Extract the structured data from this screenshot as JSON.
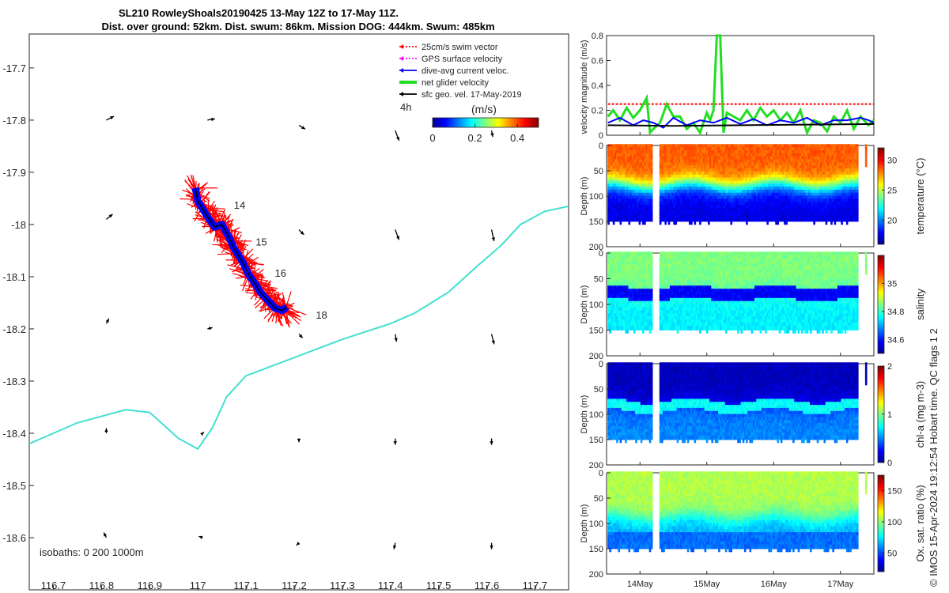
{
  "title": {
    "line1": "SL210 RowleyShoals20190425 13-May 12Z to 17-May 11Z.",
    "line2": "Dist. over ground: 52km. Dist. swum: 86km. Mission DOG: 444km. Swum: 485km"
  },
  "credit": "© IMOS 15-Apr-2024 19:12:54 Hobart time. QC flags 1  2",
  "map": {
    "xlim": [
      116.65,
      117.77
    ],
    "ylim": [
      -18.7,
      -17.635
    ],
    "xticks": [
      116.7,
      116.8,
      116.9,
      117,
      117.1,
      117.2,
      117.3,
      117.4,
      117.5,
      117.6,
      117.7
    ],
    "xtick_labels": [
      "116.7",
      "116.8",
      "116.9",
      "117",
      "117.1",
      "117.2",
      "117.3",
      "117.4",
      "117.5",
      "117.6",
      "117.7"
    ],
    "yticks": [
      -17.7,
      -17.8,
      -17.9,
      -18,
      -18.1,
      -18.2,
      -18.3,
      -18.4,
      -18.5,
      -18.6
    ],
    "ytick_labels": [
      "-17.7",
      "-17.8",
      "-17.9",
      "-18",
      "-18.1",
      "-18.2",
      "-18.3",
      "-18.4",
      "-18.5",
      "-18.6"
    ],
    "legend": [
      {
        "label": "25cm/s swim vector",
        "color": "#ff0000",
        "style": "dash"
      },
      {
        "label": "GPS surface velocity",
        "color": "#ff00ff",
        "style": "dash"
      },
      {
        "label": "dive-avg current veloc.",
        "color": "#0000ff",
        "style": "solid"
      },
      {
        "label": "net glider velocity",
        "color": "#22dd22",
        "style": "thick"
      },
      {
        "label": "sfc geo. vel. 17-May-2019",
        "color": "#000000",
        "style": "solid"
      }
    ],
    "colorbar": {
      "label": "(m/s)",
      "side_label": "4h",
      "ticks": [
        0,
        0.2,
        0.4
      ],
      "tick_labels": [
        "0",
        "0.2",
        "0.4"
      ],
      "range": [
        0,
        0.5
      ]
    },
    "isobaths_label": "isobaths: 0   200  1000m",
    "isobath": [
      [
        116.65,
        -18.42
      ],
      [
        116.75,
        -18.38
      ],
      [
        116.85,
        -18.355
      ],
      [
        116.9,
        -18.36
      ],
      [
        116.96,
        -18.41
      ],
      [
        117.0,
        -18.43
      ],
      [
        117.03,
        -18.39
      ],
      [
        117.06,
        -18.33
      ],
      [
        117.1,
        -18.29
      ],
      [
        117.2,
        -18.255
      ],
      [
        117.3,
        -18.22
      ],
      [
        117.4,
        -18.19
      ],
      [
        117.45,
        -18.17
      ],
      [
        117.52,
        -18.13
      ],
      [
        117.58,
        -18.08
      ],
      [
        117.63,
        -18.04
      ],
      [
        117.67,
        -18.0
      ],
      [
        117.72,
        -17.975
      ],
      [
        117.77,
        -17.965
      ]
    ],
    "track": [
      [
        116.995,
        -17.93
      ],
      [
        117.0,
        -17.955
      ],
      [
        117.02,
        -17.985
      ],
      [
        117.035,
        -18.005
      ],
      [
        117.05,
        -18.0
      ],
      [
        117.065,
        -18.025
      ],
      [
        117.075,
        -18.045
      ],
      [
        117.085,
        -18.06
      ],
      [
        117.095,
        -18.075
      ],
      [
        117.105,
        -18.095
      ],
      [
        117.12,
        -18.115
      ],
      [
        117.13,
        -18.13
      ],
      [
        117.145,
        -18.145
      ],
      [
        117.16,
        -18.16
      ],
      [
        117.175,
        -18.165
      ],
      [
        117.185,
        -18.158
      ]
    ],
    "day_labels": [
      {
        "text": "14",
        "lon": 117.075,
        "lat": -17.97
      },
      {
        "text": "15",
        "lon": 117.12,
        "lat": -18.04
      },
      {
        "text": "16",
        "lon": 117.16,
        "lat": -18.1
      },
      {
        "text": "18",
        "lon": 117.245,
        "lat": -18.18
      }
    ],
    "vectors": [
      {
        "lon": 116.81,
        "lat": -17.8,
        "u": 0.6,
        "v": 0.3
      },
      {
        "lon": 117.02,
        "lat": -17.8,
        "u": 0.6,
        "v": 0.1
      },
      {
        "lon": 117.21,
        "lat": -17.81,
        "u": 0.5,
        "v": -0.3
      },
      {
        "lon": 117.41,
        "lat": -17.82,
        "u": 0.3,
        "v": -0.8
      },
      {
        "lon": 117.61,
        "lat": -17.82,
        "u": 0.1,
        "v": -0.5
      },
      {
        "lon": 116.81,
        "lat": -17.99,
        "u": 0.5,
        "v": 0.4
      },
      {
        "lon": 117.02,
        "lat": -17.999,
        "u": 0.5,
        "v": -0.05
      },
      {
        "lon": 117.21,
        "lat": -18.01,
        "u": 0.4,
        "v": -0.4
      },
      {
        "lon": 117.41,
        "lat": -18.01,
        "u": 0.3,
        "v": -0.8
      },
      {
        "lon": 117.61,
        "lat": -18.01,
        "u": 0.2,
        "v": -0.9
      },
      {
        "lon": 116.81,
        "lat": -18.19,
        "u": 0.2,
        "v": 0.4
      },
      {
        "lon": 117.02,
        "lat": -18.2,
        "u": 0.4,
        "v": 0.1
      },
      {
        "lon": 117.21,
        "lat": -18.21,
        "u": 0.3,
        "v": -0.3
      },
      {
        "lon": 117.41,
        "lat": -18.21,
        "u": 0.1,
        "v": -0.6
      },
      {
        "lon": 117.61,
        "lat": -18.21,
        "u": 0.2,
        "v": -0.8
      },
      {
        "lon": 116.81,
        "lat": -18.4,
        "u": 0.0,
        "v": 0.4
      },
      {
        "lon": 117.01,
        "lat": -18.4,
        "u": 0.1,
        "v": 0.1
      },
      {
        "lon": 117.21,
        "lat": -18.41,
        "u": 0.0,
        "v": -0.3
      },
      {
        "lon": 117.41,
        "lat": -18.41,
        "u": 0.0,
        "v": -0.5
      },
      {
        "lon": 117.61,
        "lat": -18.41,
        "u": 0.0,
        "v": -0.5
      },
      {
        "lon": 116.81,
        "lat": -18.6,
        "u": -0.2,
        "v": 0.4
      },
      {
        "lon": 117.01,
        "lat": -18.6,
        "u": -0.3,
        "v": 0.1
      },
      {
        "lon": 117.21,
        "lat": -18.61,
        "u": -0.2,
        "v": -0.2
      },
      {
        "lon": 117.41,
        "lat": -18.61,
        "u": -0.1,
        "v": -0.5
      },
      {
        "lon": 117.61,
        "lat": -18.61,
        "u": 0.0,
        "v": -0.5
      }
    ]
  },
  "chart_data": [
    {
      "type": "line",
      "ylabel": "velocity magnitude (m/s)",
      "ylim": [
        0,
        0.8
      ],
      "yticks": [
        0,
        0.2,
        0.4,
        0.6,
        0.8
      ],
      "ytick_labels": [
        "0",
        "0.2",
        "0.4",
        "0.6",
        "0.8"
      ],
      "xlim": [
        13.5,
        17.5
      ],
      "series": [
        {
          "name": "25cm/s swim vector",
          "color": "#ff0000",
          "style": "dash",
          "x": [
            13.52,
            14.2,
            14.3,
            15.0,
            15.5,
            16.0,
            16.5,
            17.0,
            17.3,
            17.42,
            17.5
          ],
          "y": [
            0.25,
            0.25,
            0.25,
            0.25,
            0.25,
            0.25,
            0.25,
            0.25,
            0.25,
            0.25,
            0.25
          ]
        },
        {
          "name": "net glider velocity",
          "color": "#22dd22",
          "style": "thick",
          "x": [
            13.52,
            13.6,
            13.7,
            13.8,
            13.9,
            14.0,
            14.1,
            14.15,
            14.2,
            14.3,
            14.4,
            14.5,
            14.6,
            14.7,
            14.8,
            14.9,
            15.0,
            15.05,
            15.1,
            15.15,
            15.2,
            15.25,
            15.3,
            15.4,
            15.5,
            15.6,
            15.7,
            15.8,
            15.9,
            16.0,
            16.1,
            16.2,
            16.3,
            16.4,
            16.5,
            16.6,
            16.7,
            16.8,
            16.9,
            17.0,
            17.1,
            17.2,
            17.3,
            17.42,
            17.5
          ],
          "y": [
            0.15,
            0.2,
            0.12,
            0.22,
            0.14,
            0.2,
            0.3,
            0.02,
            0.05,
            0.1,
            0.25,
            0.15,
            0.15,
            0.05,
            0.1,
            0.02,
            0.18,
            0.12,
            0.2,
            0.8,
            0.8,
            0.02,
            0.18,
            0.15,
            0.12,
            0.2,
            0.12,
            0.22,
            0.15,
            0.2,
            0.12,
            0.18,
            0.1,
            0.2,
            0.02,
            0.12,
            0.1,
            0.03,
            0.15,
            0.1,
            0.2,
            0.05,
            0.15,
            0.08,
            0.12
          ]
        },
        {
          "name": "dive-avg current veloc.",
          "color": "#0000ff",
          "style": "solid",
          "x": [
            13.52,
            13.7,
            13.9,
            14.05,
            14.2,
            14.35,
            14.5,
            14.7,
            14.9,
            15.1,
            15.3,
            15.5,
            15.7,
            15.9,
            16.1,
            16.3,
            16.5,
            16.7,
            16.9,
            17.1,
            17.3,
            17.42,
            17.5
          ],
          "y": [
            0.1,
            0.14,
            0.08,
            0.12,
            0.1,
            0.06,
            0.14,
            0.08,
            0.12,
            0.1,
            0.14,
            0.09,
            0.13,
            0.08,
            0.12,
            0.1,
            0.14,
            0.08,
            0.12,
            0.12,
            0.14,
            0.12,
            0.1
          ]
        },
        {
          "name": "sfc geo. vel. 17-May-2019",
          "color": "#000000",
          "style": "solid",
          "x": [
            13.52,
            14.5,
            15.5,
            16.5,
            17.5
          ],
          "y": [
            0.08,
            0.075,
            0.08,
            0.085,
            0.09
          ]
        }
      ]
    },
    {
      "type": "heatmap",
      "variable": "temperature",
      "ylabel": "Depth (m)",
      "colorbar_label": "temperature (°C)",
      "ylim": [
        0,
        200
      ],
      "yticks": [
        0,
        50,
        100,
        150,
        200
      ],
      "ytick_labels": [
        "0",
        "50",
        "100",
        "150",
        "200"
      ],
      "clim": [
        16,
        32
      ],
      "cticks": [
        20,
        25,
        30
      ],
      "ctick_labels": [
        "20",
        "25",
        "30"
      ],
      "surface": 28.5,
      "deep": 17.5,
      "transition_depth": 80
    },
    {
      "type": "heatmap",
      "variable": "salinity",
      "ylabel": "Depth (m)",
      "colorbar_label": "salinity",
      "ylim": [
        0,
        200
      ],
      "yticks": [
        0,
        50,
        100,
        150,
        200
      ],
      "ytick_labels": [
        "0",
        "50",
        "100",
        "150",
        "200"
      ],
      "clim": [
        34.5,
        35.2
      ],
      "cticks": [
        34.6,
        34.8,
        35
      ],
      "ctick_labels": [
        "34.6",
        "34.8",
        "35"
      ],
      "surface": 34.85,
      "deep": 34.75,
      "transition_depth": 80
    },
    {
      "type": "heatmap",
      "variable": "chl-a",
      "ylabel": "Depth (m)",
      "colorbar_label": "chl-a (mg m-3)",
      "ylim": [
        0,
        200
      ],
      "yticks": [
        0,
        50,
        100,
        150,
        200
      ],
      "ytick_labels": [
        "0",
        "50",
        "100",
        "150",
        "200"
      ],
      "clim": [
        0,
        2
      ],
      "cticks": [
        0,
        1,
        2
      ],
      "ctick_labels": [
        "0",
        "1",
        "2"
      ],
      "surface": 0.1,
      "deep": 0.5,
      "transition_depth": 85
    },
    {
      "type": "heatmap",
      "variable": "oxygen",
      "ylabel": "Depth (m)",
      "colorbar_label": "Ox. sat. ratio (%)",
      "ylim": [
        0,
        200
      ],
      "yticks": [
        0,
        50,
        100,
        150,
        200
      ],
      "ytick_labels": [
        "0",
        "50",
        "100",
        "150",
        "200"
      ],
      "clim": [
        20,
        175
      ],
      "cticks": [
        50,
        100,
        150
      ],
      "ctick_labels": [
        "50",
        "100",
        "150"
      ],
      "surface": 105,
      "deep": 65,
      "transition_depth": 90
    }
  ],
  "time_axis": {
    "xlim": [
      13.5,
      17.5
    ],
    "ticks": [
      14,
      15,
      16,
      17
    ],
    "tick_labels": [
      "14May",
      "15May",
      "16May",
      "17May"
    ]
  },
  "gap": [
    14.2,
    14.3
  ]
}
